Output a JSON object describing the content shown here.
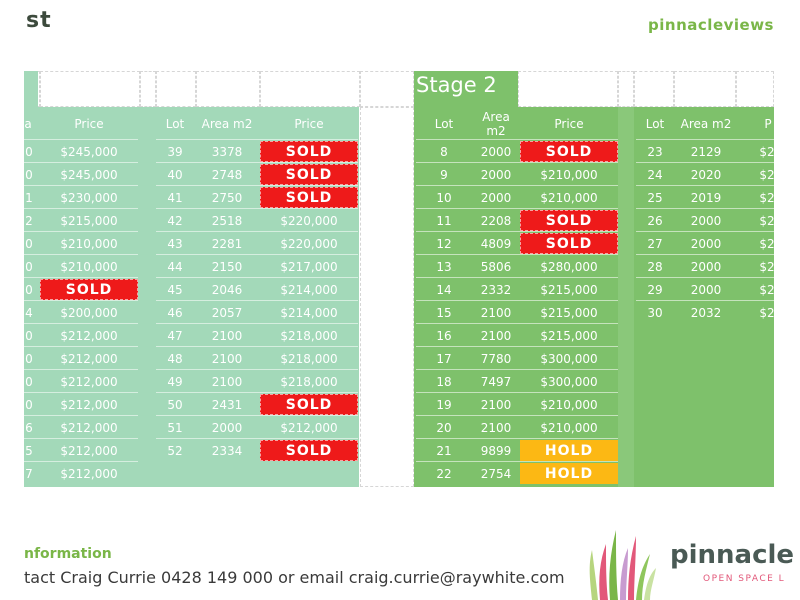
{
  "header": {
    "title": "st",
    "brand": "pinnacleviews"
  },
  "stage2_label": "Stage 2",
  "col_headers": {
    "a": "a",
    "price": "Price",
    "lot": "Lot",
    "area": "Area m2",
    "area_two": "Area\nm2",
    "price_cut": "P"
  },
  "stage1_left": {
    "cut_col": [
      "0",
      "0",
      "1",
      "2",
      "0",
      "0",
      "0",
      "4",
      "0",
      "0",
      "0",
      "0",
      "6",
      "5",
      "7"
    ],
    "prices": [
      "$245,000",
      "$245,000",
      "$230,000",
      "$215,000",
      "$210,000",
      "$210,000",
      "SOLD",
      "$200,000",
      "$212,000",
      "$212,000",
      "$212,000",
      "$212,000",
      "$212,000",
      "$212,000",
      "$212,000"
    ]
  },
  "stage1_right": {
    "lots": [
      "39",
      "40",
      "41",
      "42",
      "43",
      "44",
      "45",
      "46",
      "47",
      "48",
      "49",
      "50",
      "51",
      "52"
    ],
    "areas": [
      "3378",
      "2748",
      "2750",
      "2518",
      "2281",
      "2150",
      "2046",
      "2057",
      "2100",
      "2100",
      "2100",
      "2431",
      "2000",
      "2334"
    ],
    "prices": [
      "SOLD",
      "SOLD",
      "SOLD",
      "$220,000",
      "$220,000",
      "$217,000",
      "$214,000",
      "$214,000",
      "$218,000",
      "$218,000",
      "$218,000",
      "SOLD",
      "$212,000",
      "SOLD"
    ]
  },
  "stage2_left": {
    "lots": [
      "8",
      "9",
      "10",
      "11",
      "12",
      "13",
      "14",
      "15",
      "16",
      "17",
      "18",
      "19",
      "20",
      "21",
      "22"
    ],
    "areas": [
      "2000",
      "2000",
      "2000",
      "2208",
      "4809",
      "5806",
      "2332",
      "2100",
      "2100",
      "7780",
      "7497",
      "2100",
      "2100",
      "9899",
      "2754"
    ],
    "prices": [
      "SOLD",
      "$210,000",
      "$210,000",
      "SOLD",
      "SOLD",
      "$280,000",
      "$215,000",
      "$215,000",
      "$215,000",
      "$300,000",
      "$300,000",
      "$210,000",
      "$210,000",
      "HOLD",
      "HOLD"
    ]
  },
  "stage2_right": {
    "lots": [
      "23",
      "24",
      "25",
      "26",
      "27",
      "28",
      "29",
      "30"
    ],
    "areas": [
      "2129",
      "2020",
      "2019",
      "2000",
      "2000",
      "2000",
      "2000",
      "2032"
    ],
    "prices": [
      "$2",
      "$2",
      "$2",
      "$2",
      "$2",
      "$2",
      "$2",
      "$2"
    ]
  },
  "footer": {
    "info_heading": "nformation",
    "contact": "tact Craig Currie 0428 149 000 or email craig.currie@raywhite.com",
    "logo_name": "pinnacle",
    "logo_tagline": "OPEN SPACE L"
  },
  "colors": {
    "light_green": "#a3d9b9",
    "green": "#7ec16b",
    "sold": "#ee1a1a",
    "hold": "#fcb814"
  }
}
